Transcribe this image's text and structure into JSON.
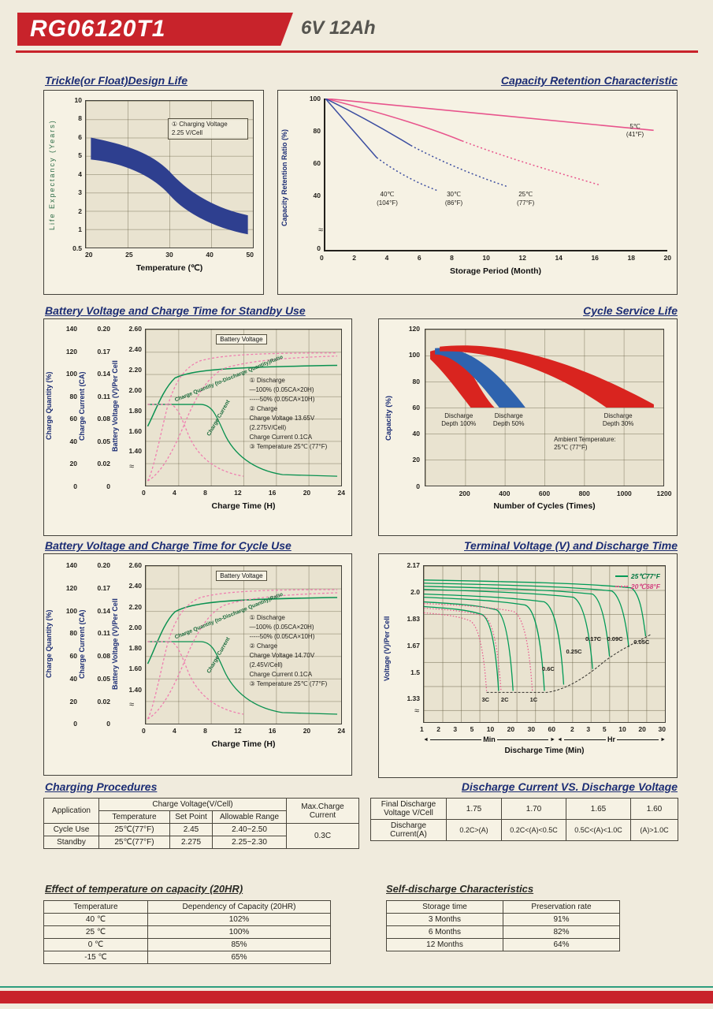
{
  "header": {
    "model": "RG06120T1",
    "spec": "6V  12Ah"
  },
  "ui": {
    "axis_break": "≈"
  },
  "chart_data": [
    {
      "id": "trickle-design-life",
      "type": "area",
      "title": "Trickle(or Float)Design Life",
      "xlabel": "Temperature (℃)",
      "ylabel": "Life Expectancy (Years)",
      "x_ticks": [
        "20",
        "25",
        "30",
        "40",
        "50"
      ],
      "y_ticks": [
        "10",
        "8",
        "6",
        "5",
        "4",
        "3",
        "2",
        "1",
        "0.5"
      ],
      "y_scale": "log",
      "annotation": "① Charging Voltage\n2.25 V/Cell",
      "band_color": "#2e3f8f",
      "series": [
        {
          "name": "design-life-band-upper",
          "x": [
            20,
            25,
            30,
            35,
            40,
            45,
            50
          ],
          "y": [
            5.8,
            5.2,
            4.2,
            2.9,
            1.9,
            1.45,
            1.2
          ]
        },
        {
          "name": "design-life-band-lower",
          "x": [
            20,
            25,
            30,
            35,
            40,
            45,
            50
          ],
          "y": [
            4.2,
            3.8,
            2.9,
            1.9,
            1.25,
            1.0,
            0.85
          ]
        }
      ]
    },
    {
      "id": "capacity-retention",
      "type": "line",
      "title": "Capacity Retention Characteristic",
      "xlabel": "Storage Period (Month)",
      "ylabel": "Capacity Retention Ratio (%)",
      "x_ticks": [
        "0",
        "2",
        "4",
        "6",
        "8",
        "10",
        "12",
        "14",
        "16",
        "18",
        "20"
      ],
      "y_ticks": [
        "100",
        "80",
        "60",
        "40"
      ],
      "y_zero": "0",
      "series": [
        {
          "name": "5C",
          "label": "5℃\n(41°F)",
          "color": "#e8548c",
          "x": [
            0,
            10,
            20
          ],
          "y": [
            100,
            90,
            79
          ]
        },
        {
          "name": "25C",
          "label": "25℃\n(77°F)",
          "color": "#e8548c",
          "x": [
            0,
            8,
            16
          ],
          "y": [
            100,
            73,
            46
          ]
        },
        {
          "name": "30C",
          "label": "30℃\n(86°F)",
          "color": "#3b4da0",
          "x": [
            0,
            5,
            10.5
          ],
          "y": [
            100,
            70,
            45
          ]
        },
        {
          "name": "40C",
          "label": "40℃\n(104°F)",
          "color": "#3b4da0",
          "x": [
            0,
            3,
            6.5
          ],
          "y": [
            100,
            63,
            42
          ]
        }
      ]
    },
    {
      "id": "standby-charge",
      "type": "line",
      "title": "Battery Voltage and Charge Time for Standby Use",
      "xlabel": "Charge Time (H)",
      "x_ticks": [
        "0",
        "4",
        "8",
        "12",
        "16",
        "20",
        "24"
      ],
      "axis_quantity": {
        "label": "Charge Quantity (%)",
        "ticks": [
          "140",
          "120",
          "100",
          "80",
          "60",
          "40",
          "20",
          "0"
        ]
      },
      "axis_current": {
        "label": "Charge Current (CA)",
        "ticks": [
          "0.20",
          "0.17",
          "0.14",
          "0.11",
          "0.08",
          "0.05",
          "0.02",
          "0"
        ]
      },
      "axis_voltage": {
        "label": "Battery Voltage (V)/Per Cell",
        "ticks": [
          "2.60",
          "2.40",
          "2.20",
          "2.00",
          "1.80",
          "1.60",
          "1.40"
        ]
      },
      "curve_labels": {
        "voltage": "Battery Voltage",
        "quantity": "Charge Quantity (to-Discharge Quantity)Ratio",
        "current": "Charge Current"
      },
      "notes": [
        "① Discharge",
        "—100% (0.05CA×20H)",
        "-----50% (0.05CA×10H)",
        "② Charge",
        "Charge Voltage 13.65V",
        "(2.275V/Cell)",
        "Charge Current 0.1CA",
        "③ Temperature 25℃ (77°F)"
      ],
      "series": [
        {
          "name": "battery-voltage-v-per-cell",
          "x": [
            0,
            2,
            4,
            8,
            12,
            16,
            20,
            24
          ],
          "y": [
            1.95,
            2.1,
            2.2,
            2.26,
            2.27,
            2.28,
            2.28,
            2.28
          ]
        },
        {
          "name": "charge-current-ca",
          "x": [
            0,
            4,
            8,
            10,
            12,
            16,
            20,
            24
          ],
          "y": [
            0.1,
            0.1,
            0.095,
            0.07,
            0.04,
            0.02,
            0.012,
            0.01
          ]
        },
        {
          "name": "charge-quantity-100pct",
          "x": [
            0,
            4,
            8,
            12,
            16,
            20,
            24
          ],
          "y": [
            0,
            35,
            75,
            100,
            110,
            114,
            116
          ]
        },
        {
          "name": "charge-quantity-50pct",
          "x": [
            0,
            4,
            8,
            12,
            16,
            20,
            24
          ],
          "y": [
            0,
            60,
            100,
            114,
            119,
            120,
            120
          ]
        }
      ]
    },
    {
      "id": "cycle-service-life",
      "type": "area",
      "title": "Cycle Service Life",
      "xlabel": "Number of Cycles (Times)",
      "ylabel": "Capacity (%)",
      "x_ticks": [
        "200",
        "400",
        "600",
        "800",
        "1000",
        "1200"
      ],
      "y_ticks": [
        "120",
        "100",
        "80",
        "60",
        "40",
        "20",
        "0"
      ],
      "annotation": "Ambient Temperature:\n25℃ (77°F)",
      "bands": [
        {
          "label": "Discharge\nDepth 100%",
          "color": "#d9241f",
          "capacity_start": 100,
          "capacity_end": 60,
          "cycles_end": 250
        },
        {
          "label": "Discharge\nDepth 50%",
          "color": "#2f63ae",
          "capacity_start": 100,
          "capacity_end": 60,
          "cycles_end": 500
        },
        {
          "label": "Discharge\nDepth 30%",
          "color": "#d9241f",
          "capacity_start": 100,
          "capacity_end": 60,
          "cycles_end": 1200
        }
      ]
    },
    {
      "id": "cycle-use-charge",
      "type": "line",
      "title": "Battery Voltage and Charge Time for Cycle Use",
      "xlabel": "Charge Time (H)",
      "x_ticks": [
        "0",
        "4",
        "8",
        "12",
        "16",
        "20",
        "24"
      ],
      "axis_quantity": {
        "label": "Charge Quantity (%)",
        "ticks": [
          "140",
          "120",
          "100",
          "80",
          "60",
          "40",
          "20",
          "0"
        ]
      },
      "axis_current": {
        "label": "Charge Current (CA)",
        "ticks": [
          "0.20",
          "0.17",
          "0.14",
          "0.11",
          "0.08",
          "0.05",
          "0.02",
          "0"
        ]
      },
      "axis_voltage": {
        "label": "Battery Voltage (V)/Per Cell",
        "ticks": [
          "2.60",
          "2.40",
          "2.20",
          "2.00",
          "1.80",
          "1.60",
          "1.40"
        ]
      },
      "curve_labels": {
        "voltage": "Battery Voltage",
        "quantity": "Charge Quantity (to-Discharge Quantity)Ratio",
        "current": "Charge Current"
      },
      "notes": [
        "① Discharge",
        "—100% (0.05CA×20H)",
        "-----50% (0.05CA×10H)",
        "② Charge",
        "Charge Voltage 14.70V",
        "(2.45V/Cell)",
        "Charge Current 0.1CA",
        "③ Temperature 25℃ (77°F)"
      ],
      "series": [
        {
          "name": "battery-voltage-v-per-cell",
          "x": [
            0,
            2,
            4,
            8,
            12,
            16,
            20,
            24
          ],
          "y": [
            1.95,
            2.15,
            2.3,
            2.43,
            2.45,
            2.45,
            2.45,
            2.45
          ]
        },
        {
          "name": "charge-current-ca",
          "x": [
            0,
            4,
            8,
            10,
            12,
            16,
            20,
            24
          ],
          "y": [
            0.1,
            0.1,
            0.09,
            0.06,
            0.035,
            0.015,
            0.01,
            0.008
          ]
        },
        {
          "name": "charge-quantity-100pct",
          "x": [
            0,
            4,
            8,
            12,
            16,
            20,
            24
          ],
          "y": [
            0,
            40,
            80,
            105,
            112,
            115,
            116
          ]
        },
        {
          "name": "charge-quantity-50pct",
          "x": [
            0,
            4,
            8,
            12,
            16,
            20,
            24
          ],
          "y": [
            0,
            65,
            105,
            116,
            120,
            120,
            120
          ]
        }
      ]
    },
    {
      "id": "terminal-voltage-discharge-time",
      "type": "line",
      "title": "Terminal Voltage (V) and Discharge Time",
      "xlabel": "Discharge Time (Min)",
      "ylabel": "Voltage (V)/Per Cell",
      "y_ticks": [
        "2.17",
        "2.0",
        "1.83",
        "1.67",
        "1.5",
        "1.33"
      ],
      "x_ticks_min": [
        "1",
        "2",
        "3",
        "5",
        "10",
        "20",
        "30",
        "60"
      ],
      "x_ticks_hr": [
        "2",
        "3",
        "5",
        "10",
        "20",
        "30"
      ],
      "x_sections": [
        "Min",
        "Hr"
      ],
      "legend": [
        {
          "label": "25℃77°F",
          "color": "#009a56",
          "style": "solid"
        },
        {
          "label": "20℃68°F",
          "color": "#e8548c",
          "style": "dotted"
        }
      ],
      "c_labels": {
        "c3": "3C",
        "c2": "2C",
        "c1": "1C",
        "c06": "0.6C",
        "c025": "0.25C",
        "c017": "0.17C",
        "c009": "0.09C",
        "c005": "0.05C"
      },
      "series": [
        {
          "rate": "3C",
          "end_time_min": 14
        },
        {
          "rate": "2C",
          "end_time_min": 22
        },
        {
          "rate": "1C",
          "end_time_min": 48
        },
        {
          "rate": "0.6C",
          "end_time_min": 85
        },
        {
          "rate": "0.25C",
          "end_time_min": 192
        },
        {
          "rate": "0.17C",
          "end_time_min": 300
        },
        {
          "rate": "0.09C",
          "end_time_min": 600
        },
        {
          "rate": "0.05C",
          "end_time_min": 1200
        }
      ]
    }
  ],
  "tables": {
    "charging": {
      "title": "Charging Procedures",
      "h_application": "Application",
      "h_charge_voltage": "Charge Voltage(V/Cell)",
      "h_temperature": "Temperature",
      "h_set_point": "Set Point",
      "h_allowable": "Allowable Range",
      "h_max_current": "Max.Charge Current",
      "rows": [
        {
          "application": "Cycle Use",
          "temperature": "25℃(77°F)",
          "set_point": "2.45",
          "allowable": "2.40~2.50"
        },
        {
          "application": "Standby",
          "temperature": "25℃(77°F)",
          "set_point": "2.275",
          "allowable": "2.25~2.30"
        }
      ],
      "max_current": "0.3C"
    },
    "discharge": {
      "title": "Discharge Current VS. Discharge Voltage",
      "row_voltage_label": "Final Discharge\nVoltage V/Cell",
      "row_voltage": [
        "1.75",
        "1.70",
        "1.65",
        "1.60"
      ],
      "row_current_label": "Discharge\nCurrent(A)",
      "row_current": [
        "0.2C>(A)",
        "0.2C<(A)<0.5C",
        "0.5C<(A)<1.0C",
        "(A)>1.0C"
      ]
    },
    "temp_capacity": {
      "title": "Effect of temperature on capacity (20HR)",
      "headers": [
        "Temperature",
        "Dependency of Capacity (20HR)"
      ],
      "rows": [
        [
          "40 ℃",
          "102%"
        ],
        [
          "25 ℃",
          "100%"
        ],
        [
          "0 ℃",
          "85%"
        ],
        [
          "-15 ℃",
          "65%"
        ]
      ]
    },
    "self_discharge": {
      "title": "Self-discharge Characteristics",
      "headers": [
        "Storage time",
        "Preservation rate"
      ],
      "rows": [
        [
          "3 Months",
          "91%"
        ],
        [
          "6 Months",
          "82%"
        ],
        [
          "12 Months",
          "64%"
        ]
      ]
    }
  }
}
